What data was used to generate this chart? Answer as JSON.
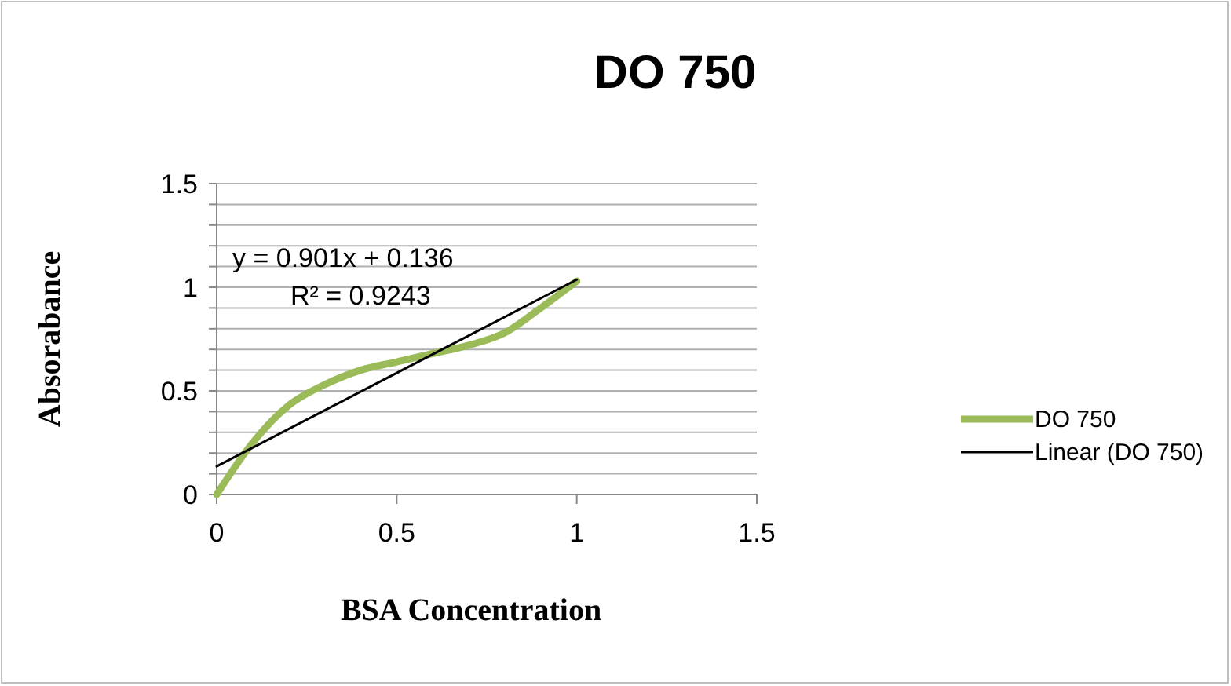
{
  "chart_data": {
    "type": "line",
    "title": "DO 750",
    "xlabel": "BSA Concentration",
    "ylabel": "Absorabance",
    "series": [
      {
        "name": "DO 750",
        "color": "#9bbb59",
        "x": [
          0,
          0.1,
          0.2,
          0.3,
          0.4,
          0.5,
          0.6,
          0.7,
          0.8,
          0.9,
          1.0
        ],
        "values": [
          0,
          0.25,
          0.43,
          0.53,
          0.6,
          0.64,
          0.68,
          0.72,
          0.78,
          0.9,
          1.03
        ]
      },
      {
        "name": "Linear (DO 750)",
        "color": "#000000",
        "x": [
          0,
          1
        ],
        "values": [
          0.136,
          1.037
        ]
      }
    ],
    "xlim": [
      0,
      1.5
    ],
    "xticks": [
      0,
      0.5,
      1,
      1.5
    ],
    "ylim": [
      0,
      1.5
    ],
    "yticks": [
      0,
      {
        "value": 0.1,
        "label": null
      },
      {
        "value": 0.2,
        "label": null
      },
      {
        "value": 0.3,
        "label": null
      },
      {
        "value": 0.4,
        "label": null
      },
      0.5,
      {
        "value": 0.6,
        "label": null
      },
      {
        "value": 0.7,
        "label": null
      },
      {
        "value": 0.8,
        "label": null
      },
      {
        "value": 0.9,
        "label": null
      },
      1,
      {
        "value": 1.1,
        "label": null
      },
      {
        "value": 1.2,
        "label": null
      },
      {
        "value": 1.3,
        "label": null
      },
      {
        "value": 1.4,
        "label": null
      },
      1.5
    ],
    "grid": "y",
    "legend": "right",
    "marker": "none",
    "annotations": [
      "y = 0.901x + 0.136",
      "R² = 0.9243"
    ]
  }
}
